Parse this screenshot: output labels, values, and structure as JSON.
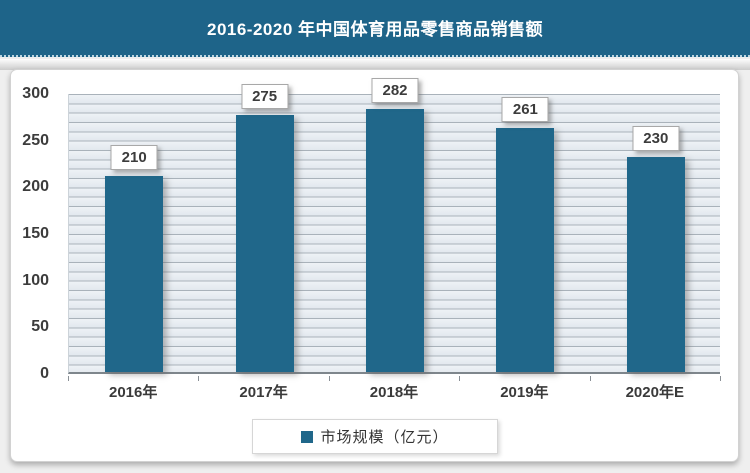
{
  "title_bar": {
    "title": "2016-2020 年中国体育用品零售商品销售额"
  },
  "legend": {
    "label": "市场规模（亿元）",
    "marker": "square"
  },
  "colors": {
    "header_bg": "#1e6489",
    "bar": "#20678a",
    "plot_gridline": "#a9b2ba",
    "plot_bg": "#e7ecf1",
    "axis_line": "#7e868c",
    "text": "#3c3c3c"
  },
  "chart_data": {
    "type": "bar",
    "title": "2016-2020 年中国体育用品零售商品销售额",
    "categories": [
      "2016年",
      "2017年",
      "2018年",
      "2019年",
      "2020年E"
    ],
    "series": [
      {
        "name": "市场规模（亿元）",
        "values": [
          210,
          275,
          282,
          261,
          230
        ]
      }
    ],
    "data_labels": true,
    "xlabel": "",
    "ylabel": "",
    "ylim": [
      0,
      300
    ],
    "ytick_interval": 50,
    "yticks": [
      "0",
      "50",
      "100",
      "150",
      "200",
      "250",
      "300"
    ],
    "minor_grid_interval": 10,
    "grid": "horizontal",
    "legend_position": "bottom"
  }
}
